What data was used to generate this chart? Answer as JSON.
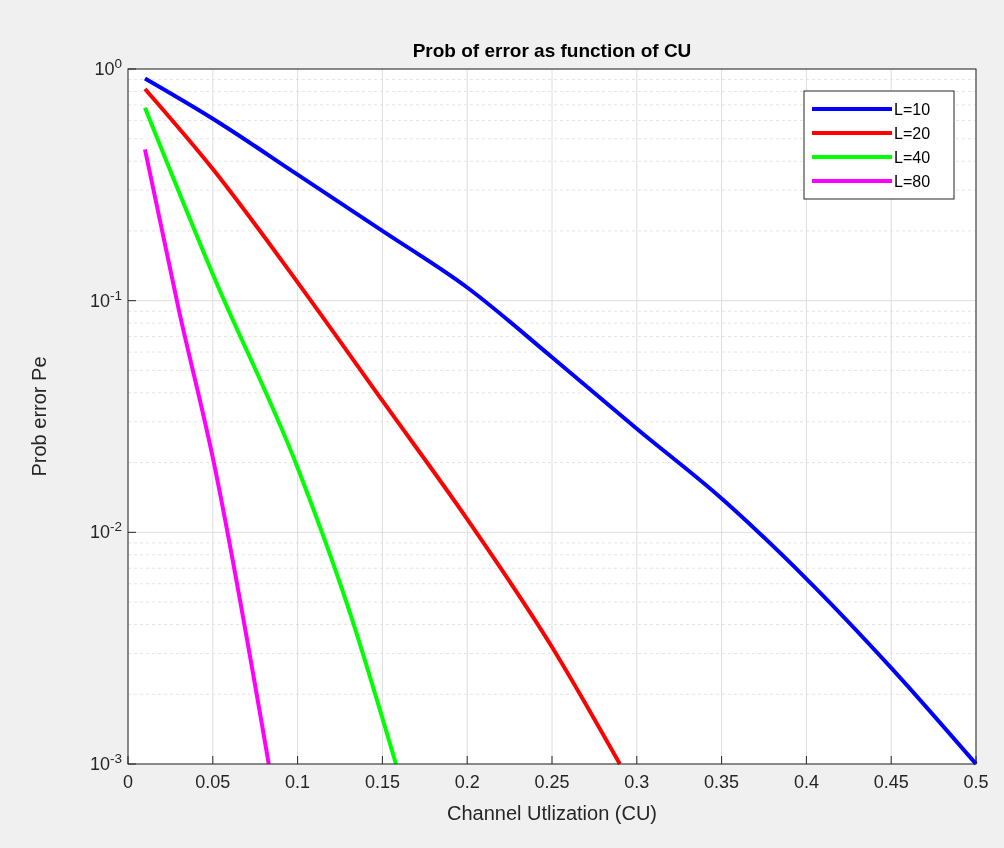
{
  "chart_data": {
    "type": "line",
    "title": "Prob of error as function of CU",
    "xlabel": "Channel Utlization (CU)",
    "ylabel": "Prob error Pe",
    "log": "y",
    "grid": true,
    "legend": "top right",
    "line_style": "solid",
    "marker": "none",
    "xlim": [
      0,
      0.5
    ],
    "xticks": [
      0,
      0.05,
      0.1,
      0.15,
      0.2,
      0.25,
      0.3,
      0.35,
      0.4,
      0.45,
      0.5
    ],
    "ylim": [
      0.001,
      1
    ],
    "yticks": [
      {
        "value": 0.001,
        "label": "10$^{-3}$"
      },
      {
        "value": 0.01,
        "label": "10$^{-2}$"
      },
      {
        "value": 0.1,
        "label": "10$^{-1}$"
      },
      {
        "value": 1,
        "label": "10$^{0}$"
      }
    ],
    "series": [
      {
        "name": "L=10",
        "color": "#0000ff",
        "x": [
          0.01,
          0.05,
          0.1,
          0.15,
          0.2,
          0.25,
          0.3,
          0.35,
          0.4,
          0.45,
          0.5
        ],
        "values": [
          0.91,
          0.61,
          0.35,
          0.2,
          0.114,
          0.057,
          0.028,
          0.014,
          0.0063,
          0.0026,
          0.001
        ]
      },
      {
        "name": "L=20",
        "color": "#ff0000",
        "x": [
          0.01,
          0.05,
          0.1,
          0.15,
          0.2,
          0.25,
          0.29
        ],
        "values": [
          0.82,
          0.37,
          0.12,
          0.037,
          0.0114,
          0.0032,
          0.001
        ]
      },
      {
        "name": "L=40",
        "color": "#00ff00",
        "x": [
          0.01,
          0.05,
          0.1,
          0.13,
          0.158
        ],
        "values": [
          0.68,
          0.13,
          0.019,
          0.0047,
          0.001
        ]
      },
      {
        "name": "L=80",
        "color": "#ff00ff",
        "x": [
          0.01,
          0.03,
          0.05,
          0.083
        ],
        "values": [
          0.45,
          0.091,
          0.021,
          0.001
        ]
      }
    ]
  }
}
